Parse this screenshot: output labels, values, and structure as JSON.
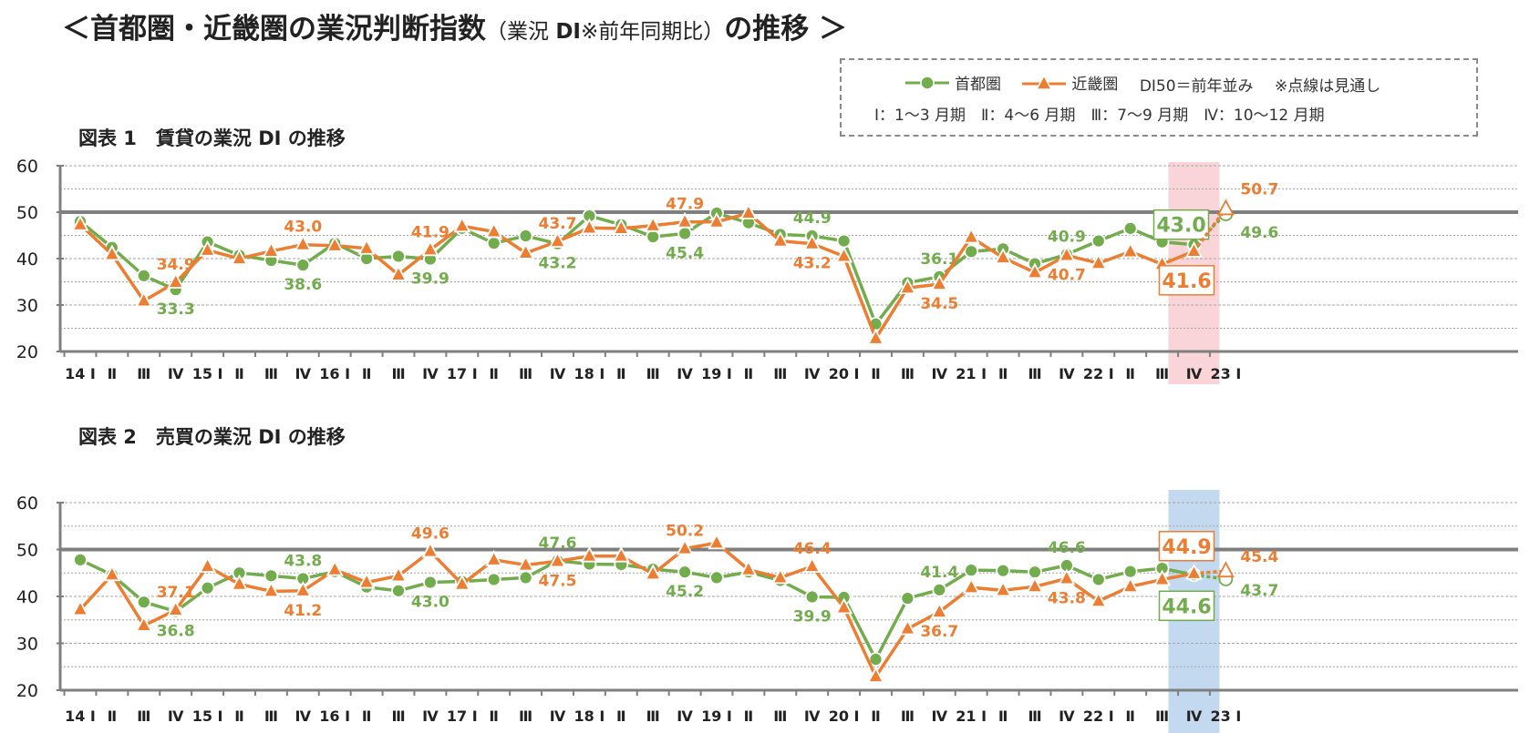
{
  "header": {
    "title_main": "＜首都圏・近畿圏の業況判断指数",
    "title_open": "（業況 ",
    "title_di": "DI",
    "title_note": "※前年同期比）",
    "title_end": "の推移 ＞"
  },
  "legend": {
    "shutoken": "首都圏",
    "kinki": "近畿圏",
    "note1": "DI50＝前年並み",
    "note2": "※点線は見通し",
    "quarters": "Ⅰ：1～3 月期　Ⅱ：4～6 月期　Ⅲ：7～9 月期　Ⅳ：10～12 月期"
  },
  "colors": {
    "shutoken": "#72ac4d",
    "kinki": "#ed7d31",
    "highlight1": "#f9d4d8",
    "highlight2": "#c2d9ef",
    "axis": "#7f7f7f"
  },
  "chart_titles": [
    "図表 1　賃貸の業況 DI の推移",
    "図表 2　売買の業況 DI の推移"
  ],
  "chart_data": [
    {
      "type": "line",
      "title": "図表 1　賃貸の業況 DI の推移",
      "categories": [
        "14 Ⅰ",
        "Ⅱ",
        "Ⅲ",
        "Ⅳ",
        "15 Ⅰ",
        "Ⅱ",
        "Ⅲ",
        "Ⅳ",
        "16 Ⅰ",
        "Ⅱ",
        "Ⅲ",
        "Ⅳ",
        "17 Ⅰ",
        "Ⅱ",
        "Ⅲ",
        "Ⅳ",
        "18 Ⅰ",
        "Ⅱ",
        "Ⅲ",
        "Ⅳ",
        "19 Ⅰ",
        "Ⅱ",
        "Ⅲ",
        "Ⅳ",
        "20 Ⅰ",
        "Ⅱ",
        "Ⅲ",
        "Ⅳ",
        "21 Ⅰ",
        "Ⅱ",
        "Ⅲ",
        "Ⅳ",
        "22 Ⅰ",
        "Ⅱ",
        "Ⅲ",
        "Ⅳ",
        "23 Ⅰ"
      ],
      "ylim": [
        20,
        60
      ],
      "yticks": [
        20,
        30,
        40,
        50,
        60
      ],
      "reference_line": 50,
      "grid": true,
      "highlight_category": "Ⅳ",
      "series": [
        {
          "name": "首都圏",
          "marker": "circle",
          "values": [
            48.0,
            42.4,
            36.3,
            33.3,
            43.6,
            40.7,
            39.6,
            38.6,
            43.3,
            40.0,
            40.5,
            39.9,
            46.5,
            43.3,
            44.9,
            43.2,
            49.2,
            47.3,
            44.7,
            45.4,
            49.8,
            47.7,
            45.2,
            44.9,
            43.8,
            25.9,
            34.8,
            36.1,
            41.5,
            42.1,
            38.9,
            40.9,
            43.8,
            46.5,
            43.6,
            43.0,
            49.6
          ],
          "labels": {
            "3": "33.3",
            "7": "38.6",
            "11": "39.9",
            "15": "43.2",
            "19": "45.4",
            "23": "44.9",
            "27": "36.1",
            "31": "40.9",
            "35": "43.0",
            "36": "49.6"
          }
        },
        {
          "name": "近畿圏",
          "marker": "triangle",
          "values": [
            47.3,
            40.9,
            30.9,
            34.9,
            41.8,
            40.0,
            41.6,
            43.0,
            42.8,
            42.2,
            36.5,
            41.9,
            47.0,
            45.8,
            41.2,
            43.7,
            46.6,
            46.5,
            47.1,
            47.9,
            47.9,
            49.8,
            43.8,
            43.2,
            40.5,
            22.8,
            33.7,
            34.5,
            44.6,
            40.2,
            37.0,
            40.7,
            39.0,
            41.5,
            38.8,
            41.6,
            50.7
          ],
          "labels": {
            "3": "34.9",
            "7": "43.0",
            "11": "41.9",
            "15": "43.7",
            "19": "47.9",
            "23": "43.2",
            "27": "34.5",
            "31": "40.7",
            "35": "41.6",
            "36": "50.7"
          }
        }
      ]
    },
    {
      "type": "line",
      "title": "図表 2　売買の業況 DI の推移",
      "categories": [
        "14 Ⅰ",
        "Ⅱ",
        "Ⅲ",
        "Ⅳ",
        "15 Ⅰ",
        "Ⅱ",
        "Ⅲ",
        "Ⅳ",
        "16 Ⅰ",
        "Ⅱ",
        "Ⅲ",
        "Ⅳ",
        "17 Ⅰ",
        "Ⅱ",
        "Ⅲ",
        "Ⅳ",
        "18 Ⅰ",
        "Ⅱ",
        "Ⅲ",
        "Ⅳ",
        "19 Ⅰ",
        "Ⅱ",
        "Ⅲ",
        "Ⅳ",
        "20 Ⅰ",
        "Ⅱ",
        "Ⅲ",
        "Ⅳ",
        "21 Ⅰ",
        "Ⅱ",
        "Ⅲ",
        "Ⅳ",
        "22 Ⅰ",
        "Ⅱ",
        "Ⅲ",
        "Ⅳ",
        "23 Ⅰ"
      ],
      "ylim": [
        20,
        60
      ],
      "yticks": [
        20,
        30,
        40,
        50,
        60
      ],
      "reference_line": 50,
      "grid": true,
      "highlight_category": "Ⅳ",
      "series": [
        {
          "name": "首都圏",
          "marker": "circle",
          "values": [
            47.8,
            44.6,
            38.8,
            36.8,
            41.8,
            45.0,
            44.4,
            43.8,
            45.3,
            42.0,
            41.2,
            43.0,
            43.2,
            43.6,
            44.0,
            47.6,
            46.9,
            46.8,
            45.8,
            45.2,
            44.0,
            45.2,
            43.4,
            39.9,
            39.8,
            26.6,
            39.6,
            41.4,
            45.6,
            45.5,
            45.2,
            46.6,
            43.6,
            45.3,
            46.0,
            44.6,
            43.7
          ],
          "labels": {
            "3": "36.8",
            "7": "43.8",
            "11": "43.0",
            "15": "47.6",
            "19": "45.2",
            "23": "39.9",
            "27": "41.4",
            "31": "46.6",
            "35": "44.6",
            "36": "43.7"
          }
        },
        {
          "name": "近畿圏",
          "marker": "triangle",
          "values": [
            37.2,
            44.6,
            33.8,
            37.1,
            46.4,
            42.6,
            41.1,
            41.2,
            45.7,
            43.0,
            44.4,
            49.6,
            42.6,
            47.8,
            46.7,
            47.5,
            48.6,
            48.6,
            44.8,
            50.2,
            51.4,
            45.7,
            44.0,
            46.4,
            37.6,
            22.9,
            33.1,
            36.7,
            41.9,
            41.3,
            42.1,
            43.8,
            39.0,
            42.1,
            43.6,
            44.9,
            45.4
          ],
          "labels": {
            "3": "37.1",
            "7": "41.2",
            "11": "49.6",
            "15": "47.5",
            "19": "50.2",
            "23": "46.4",
            "27": "36.7",
            "31": "43.8",
            "35": "44.9",
            "36": "45.4"
          }
        }
      ]
    }
  ]
}
